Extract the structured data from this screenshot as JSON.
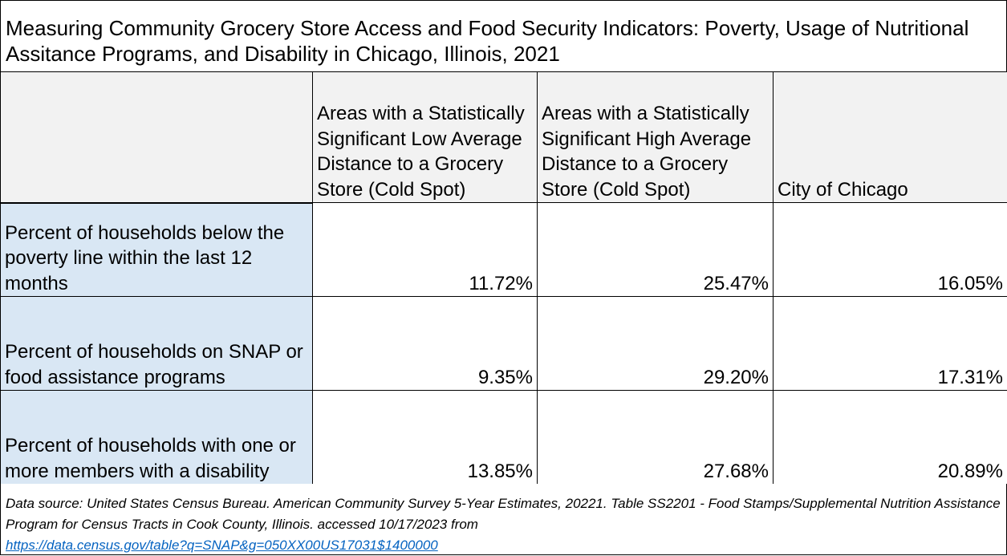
{
  "title": "Measuring Community Grocery Store Access and Food Security Indicators: Poverty, Usage of Nutritional Assitance Programs, and Disability in Chicago, Illinois, 2021",
  "table": {
    "columns": [
      "",
      "Areas with a Statistically Significant Low Average Distance to a Grocery Store (Cold Spot)",
      "Areas with a Statistically Significant High Average Distance to a Grocery Store (Cold Spot)",
      "City of Chicago"
    ],
    "rows": [
      {
        "label": "Percent of households below the poverty line within the last 12 months",
        "values": [
          "11.72%",
          "25.47%",
          "16.05%"
        ]
      },
      {
        "label": "Percent of households on SNAP or food assistance programs",
        "values": [
          "9.35%",
          "29.20%",
          "17.31%"
        ]
      },
      {
        "label": "Percent of households with one or more members with a disability",
        "values": [
          "13.85%",
          "27.68%",
          "20.89%"
        ]
      }
    ]
  },
  "footnote": {
    "text": "Data source: United States Census Bureau. American Community Survey 5-Year Estimates, 20221. Table SS2201 - Food Stamps/Supplemental Nutrition Assistance Program for Census Tracts in Cook County, Illinois. accessed 10/17/2023 from",
    "link": "https://data.census.gov/table?q=SNAP&g=050XX00US17031$1400000"
  },
  "colors": {
    "header_bg": "#f2f2f2",
    "label_bg": "#d9e7f4",
    "link": "#0563c1"
  }
}
